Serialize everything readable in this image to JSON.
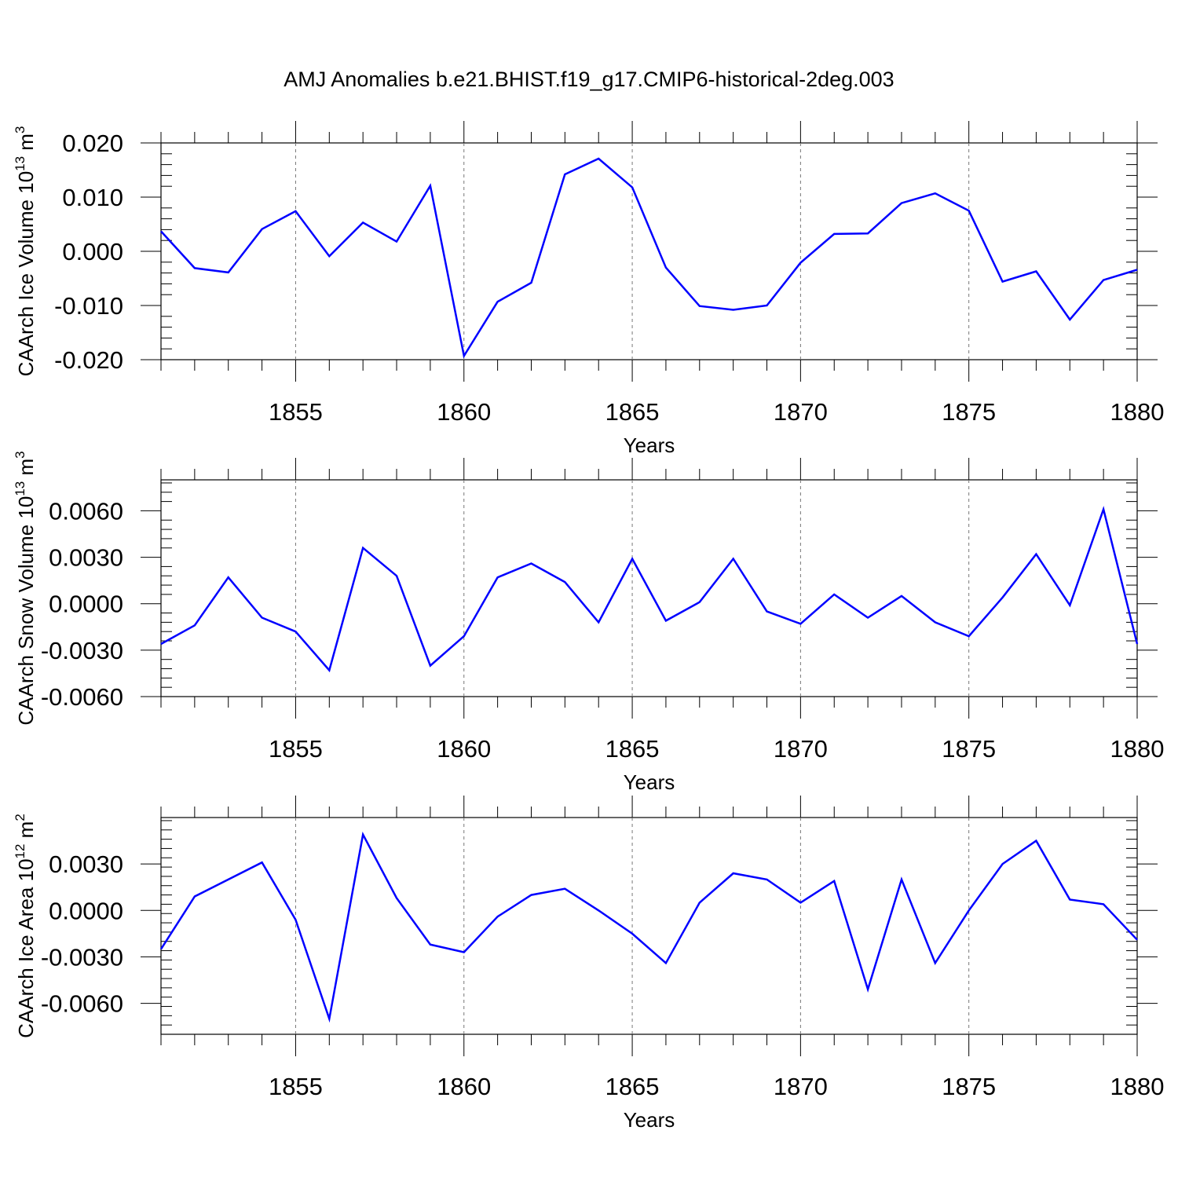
{
  "title": "AMJ Anomalies b.e21.BHIST.f19_g17.CMIP6-historical-2deg.003",
  "line_color": "#0000ff",
  "chart_data": [
    {
      "type": "line",
      "ylabel_main": "CAArch Ice Volume 10",
      "ylabel_exp": "13",
      "ylabel_unit": " m",
      "ylabel_unit_exp": "3",
      "xlabel": "Years",
      "xlim": [
        1851,
        1880
      ],
      "ylim": [
        -0.02,
        0.02
      ],
      "yticks": [
        -0.02,
        -0.01,
        0.0,
        0.01,
        0.02
      ],
      "ytick_labels": [
        "-0.020",
        "-0.010",
        "0.000",
        "0.010",
        "0.020"
      ],
      "xticks": [
        1855,
        1860,
        1865,
        1870,
        1875,
        1880
      ],
      "xtick_labels": [
        "1855",
        "1860",
        "1865",
        "1870",
        "1875",
        "1880"
      ],
      "x": [
        1851,
        1852,
        1853,
        1854,
        1855,
        1856,
        1857,
        1858,
        1859,
        1860,
        1861,
        1862,
        1863,
        1864,
        1865,
        1866,
        1867,
        1868,
        1869,
        1870,
        1871,
        1872,
        1873,
        1874,
        1875,
        1876,
        1877,
        1878,
        1879,
        1880
      ],
      "values": [
        0.0037,
        -0.0031,
        -0.0039,
        0.0041,
        0.0074,
        -0.0009,
        0.0053,
        0.0018,
        0.0121,
        -0.0193,
        -0.0093,
        -0.0058,
        0.0142,
        0.0171,
        0.0118,
        -0.003,
        -0.0101,
        -0.0108,
        -0.01,
        -0.0021,
        0.0032,
        0.0033,
        0.0089,
        0.0107,
        0.0075,
        -0.0056,
        -0.0037,
        -0.0126,
        -0.0053,
        -0.0034
      ]
    },
    {
      "type": "line",
      "ylabel_main": "CAArch Snow Volume 10",
      "ylabel_exp": "13",
      "ylabel_unit": " m",
      "ylabel_unit_exp": "3",
      "xlabel": "Years",
      "xlim": [
        1851,
        1880
      ],
      "ylim": [
        -0.006,
        0.008
      ],
      "yticks": [
        -0.006,
        -0.003,
        0.0,
        0.003,
        0.006
      ],
      "ytick_labels": [
        "-0.0060",
        "-0.0030",
        "0.0000",
        "0.0030",
        "0.0060"
      ],
      "xticks": [
        1855,
        1860,
        1865,
        1870,
        1875,
        1880
      ],
      "xtick_labels": [
        "1855",
        "1860",
        "1865",
        "1870",
        "1875",
        "1880"
      ],
      "x": [
        1851,
        1852,
        1853,
        1854,
        1855,
        1856,
        1857,
        1858,
        1859,
        1860,
        1861,
        1862,
        1863,
        1864,
        1865,
        1866,
        1867,
        1868,
        1869,
        1870,
        1871,
        1872,
        1873,
        1874,
        1875,
        1876,
        1877,
        1878,
        1879,
        1880
      ],
      "values": [
        -0.0026,
        -0.0014,
        0.0017,
        -0.0009,
        -0.0018,
        -0.0043,
        0.0036,
        0.0018,
        -0.004,
        -0.0021,
        0.0017,
        0.0026,
        0.0014,
        -0.0012,
        0.0029,
        -0.0011,
        0.0001,
        0.0029,
        -0.0005,
        -0.0013,
        0.0006,
        -0.0009,
        0.0005,
        -0.0012,
        -0.0021,
        0.0004,
        0.0032,
        -0.0001,
        0.0061,
        -0.0026
      ]
    },
    {
      "type": "line",
      "ylabel_main": "CAArch Ice Area 10",
      "ylabel_exp": "12",
      "ylabel_unit": " m",
      "ylabel_unit_exp": "2",
      "xlabel": "Years",
      "xlim": [
        1851,
        1880
      ],
      "ylim": [
        -0.008,
        0.006
      ],
      "yticks": [
        -0.006,
        -0.003,
        0.0,
        0.003
      ],
      "ytick_labels": [
        "-0.0060",
        "-0.0030",
        "0.0000",
        "0.0030"
      ],
      "xticks": [
        1855,
        1860,
        1865,
        1870,
        1875,
        1880
      ],
      "xtick_labels": [
        "1855",
        "1860",
        "1865",
        "1870",
        "1875",
        "1880"
      ],
      "x": [
        1851,
        1852,
        1853,
        1854,
        1855,
        1856,
        1857,
        1858,
        1859,
        1860,
        1861,
        1862,
        1863,
        1864,
        1865,
        1866,
        1867,
        1868,
        1869,
        1870,
        1871,
        1872,
        1873,
        1874,
        1875,
        1876,
        1877,
        1878,
        1879,
        1880
      ],
      "values": [
        -0.0025,
        0.0009,
        0.002,
        0.0031,
        -0.0006,
        -0.007,
        0.0049,
        0.0008,
        -0.0022,
        -0.0027,
        -0.0004,
        0.001,
        0.0014,
        0.0,
        -0.0015,
        -0.0034,
        0.0005,
        0.0024,
        0.002,
        0.0005,
        0.0019,
        -0.0051,
        0.002,
        -0.0034,
        0.0,
        0.003,
        0.0045,
        0.0007,
        0.0004,
        -0.0019
      ]
    }
  ]
}
